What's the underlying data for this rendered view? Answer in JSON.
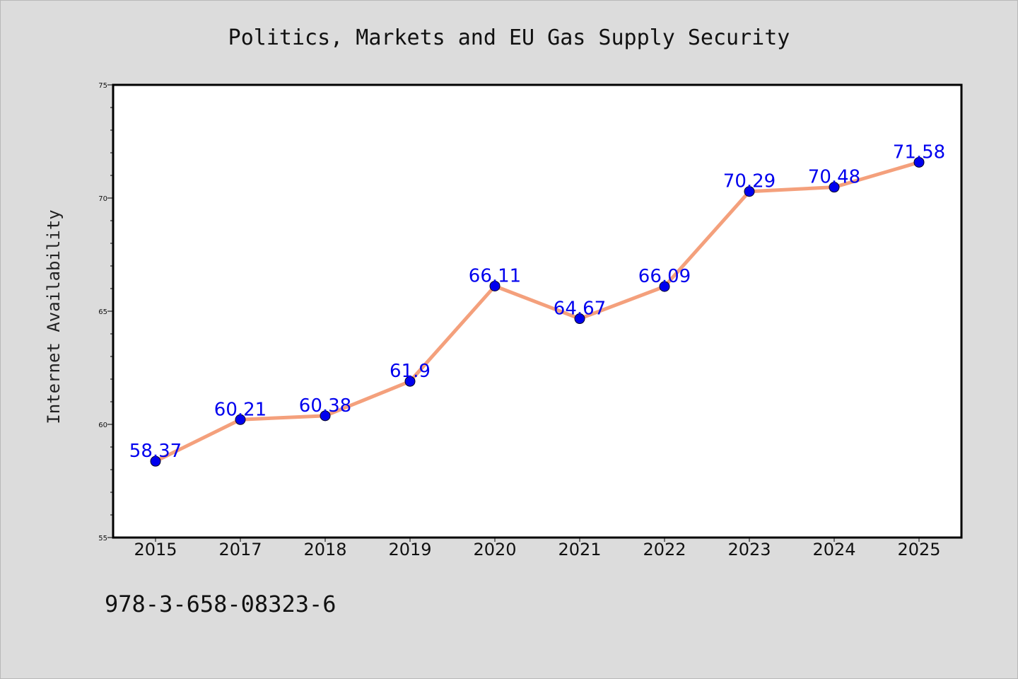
{
  "chart_data": {
    "type": "line",
    "title": "Politics, Markets and EU Gas Supply Security",
    "ylabel": "Internet Availability",
    "xlabel": "",
    "categories": [
      "2015",
      "2017",
      "2018",
      "2019",
      "2020",
      "2021",
      "2022",
      "2023",
      "2024",
      "2025"
    ],
    "series": [
      {
        "values": [
          58.37,
          60.21,
          60.38,
          61.9,
          66.11,
          64.67,
          66.09,
          70.29,
          70.48,
          71.58
        ],
        "labels": [
          "58.37",
          "60.21",
          "60.38",
          "61.9",
          "66.11",
          "64.67",
          "66.09",
          "70.29",
          "70.48",
          "71.58"
        ],
        "line_color": "#f4a07c",
        "marker_color": "#0000ee",
        "label_color": "#0000ee"
      }
    ],
    "ylim": [
      55,
      75
    ],
    "yticks": [
      "55",
      "60",
      "65",
      "70",
      "75"
    ],
    "grid": false,
    "legend": "none"
  },
  "footer": {
    "isbn": "978-3-658-08323-6"
  },
  "colors": {
    "background": "#dcdcdc",
    "plot_background": "#ffffff",
    "axis": "#000000"
  }
}
